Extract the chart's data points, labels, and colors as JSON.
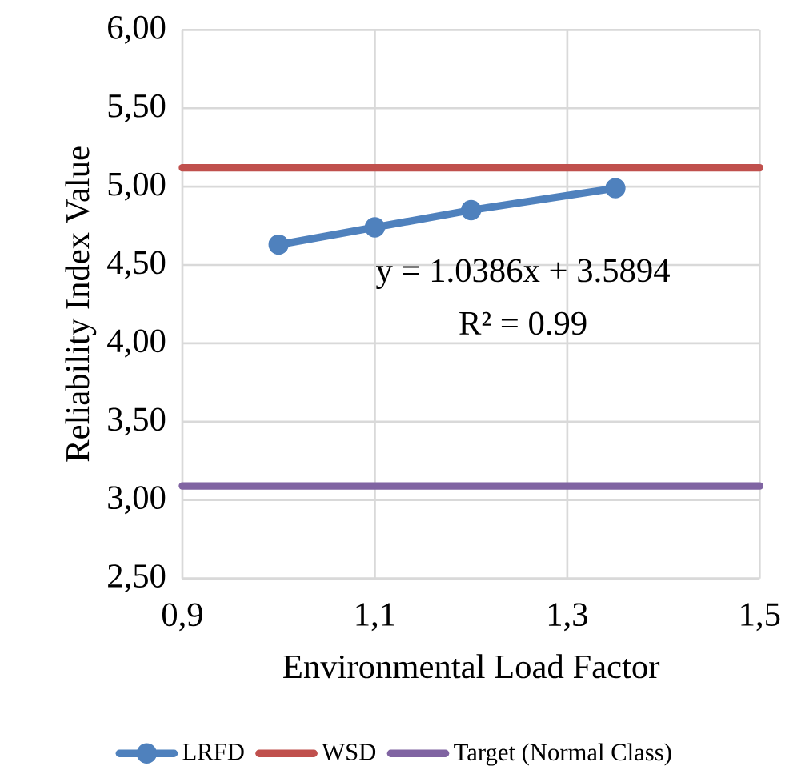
{
  "chart_data": {
    "type": "line",
    "xlabel": "Environmental Load Factor",
    "ylabel": "Reliability Index Value",
    "xlim": [
      0.9,
      1.5
    ],
    "ylim": [
      2.5,
      6
    ],
    "xticks": [
      {
        "value": 0.9,
        "label": "0,9"
      },
      {
        "value": 1.1,
        "label": "1,1"
      },
      {
        "value": 1.3,
        "label": "1,3"
      },
      {
        "value": 1.5,
        "label": "1,5"
      }
    ],
    "yticks": [
      {
        "value": 2.5,
        "label": "2,50"
      },
      {
        "value": 3,
        "label": "3,00"
      },
      {
        "value": 3.5,
        "label": "3,50"
      },
      {
        "value": 4,
        "label": "4,00"
      },
      {
        "value": 4.5,
        "label": "4,50"
      },
      {
        "value": 5,
        "label": "5,00"
      },
      {
        "value": 5.5,
        "label": "5,50"
      },
      {
        "value": 6,
        "label": "6,00"
      }
    ],
    "grid": true,
    "legend": "bottom",
    "marker": "circle",
    "line_style": "solid",
    "series": [
      {
        "name": "LRFD",
        "color": "#4f81bd",
        "x": [
          1.0,
          1.1,
          1.2,
          1.35
        ],
        "values": [
          4.63,
          4.74,
          4.85,
          4.99
        ]
      },
      {
        "name": "WSD",
        "color": "#c0504d",
        "x": [
          0.9,
          1.5
        ],
        "values": [
          5.12,
          5.12
        ],
        "marker": "none"
      },
      {
        "name": "Target (Normal Class)",
        "color": "#8064a2",
        "x": [
          0.9,
          1.5
        ],
        "values": [
          3.09,
          3.09
        ],
        "marker": "none"
      }
    ],
    "annotations": [
      "y = 1.0386x + 3.5894",
      "R² = 0.99"
    ]
  }
}
